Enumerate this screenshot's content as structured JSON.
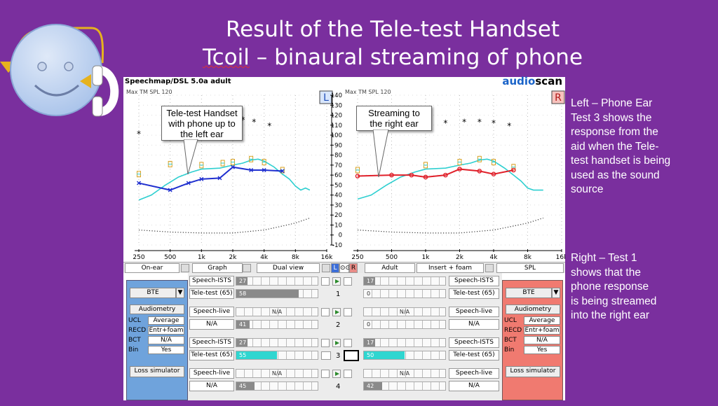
{
  "slide": {
    "title_line1": "Result of the Tele-test Handset",
    "title_line2_word": "Tcoil",
    "title_line2_rest": " – binaural streaming of phone",
    "side_left": [
      "Left – Phone Ear",
      "Test 3 shows the",
      "response from the",
      "aid when the Tele-",
      "test handset is being",
      "used as the sound",
      "source"
    ],
    "side_right": [
      "Right – Test 1",
      "shows that the",
      "phone response",
      "is being streamed",
      "into the right ear"
    ],
    "callout_left": [
      "Tele-test Handset",
      "with phone up to",
      "the left ear"
    ],
    "callout_right": [
      "Streaming to",
      "the right ear"
    ]
  },
  "screen": {
    "header": "Speechmap/DSL 5.0a adult",
    "brand_a": "audio",
    "brand_b": "scan",
    "max_label": "Max TM SPL 120",
    "left_badge": "L",
    "right_badge": "R",
    "colors": {
      "left_curve": "#1f2fcf",
      "right_curve": "#e0202a",
      "target": "#2ecfd0",
      "left_panel": "#6fa3dc",
      "right_panel": "#f07a70"
    }
  },
  "chart_data": {
    "type": "line",
    "x_ticks": [
      "250",
      "500",
      "1k",
      "2k",
      "4k",
      "8k",
      "16k"
    ],
    "y_ticks": [
      "140",
      "130",
      "120",
      "110",
      "100",
      "90",
      "80",
      "70",
      "60",
      "50",
      "40",
      "30",
      "20",
      "10",
      "0",
      "-10"
    ],
    "ylim": [
      -10,
      140
    ],
    "left_ear": {
      "ucl_stars": [
        [
          250,
          101
        ],
        [
          2500,
          115
        ],
        [
          3200,
          113
        ],
        [
          4500,
          109
        ]
      ],
      "targets": [
        [
          250,
          61
        ],
        [
          500,
          71
        ],
        [
          1000,
          70
        ],
        [
          1600,
          72
        ],
        [
          2000,
          73
        ],
        [
          3000,
          76
        ],
        [
          4000,
          73
        ],
        [
          6000,
          65
        ]
      ],
      "aided_response_test3": [
        [
          250,
          52
        ],
        [
          500,
          45
        ],
        [
          750,
          52
        ],
        [
          1000,
          56
        ],
        [
          1500,
          57
        ],
        [
          2000,
          68
        ],
        [
          3000,
          65
        ],
        [
          4000,
          65
        ],
        [
          6000,
          64
        ]
      ],
      "target_curve": [
        [
          250,
          35
        ],
        [
          330,
          40
        ],
        [
          450,
          50
        ],
        [
          600,
          58
        ],
        [
          800,
          63
        ],
        [
          1000,
          66
        ],
        [
          1500,
          67
        ],
        [
          2000,
          70
        ],
        [
          2500,
          72
        ],
        [
          3000,
          75
        ],
        [
          3500,
          76
        ],
        [
          4000,
          74
        ],
        [
          5000,
          68
        ],
        [
          6000,
          61
        ],
        [
          7000,
          56
        ],
        [
          8000,
          49
        ],
        [
          9000,
          45
        ],
        [
          10000,
          47
        ],
        [
          11000,
          45
        ]
      ],
      "threshold_curve": [
        [
          250,
          5
        ],
        [
          500,
          3
        ],
        [
          1000,
          2
        ],
        [
          2000,
          2
        ],
        [
          4000,
          5
        ],
        [
          6000,
          9
        ],
        [
          8000,
          12
        ],
        [
          11000,
          17
        ]
      ]
    },
    "right_ear": {
      "ucl_stars": [
        [
          1000,
          113
        ],
        [
          1500,
          112
        ],
        [
          2200,
          113
        ],
        [
          3000,
          113
        ],
        [
          4000,
          112
        ],
        [
          5500,
          109
        ]
      ],
      "targets": [
        [
          250,
          65
        ],
        [
          1000,
          70
        ],
        [
          2000,
          73
        ],
        [
          3000,
          76
        ],
        [
          4000,
          73
        ],
        [
          6000,
          68
        ]
      ],
      "aided_response_test1": [
        [
          250,
          59
        ],
        [
          500,
          60
        ],
        [
          750,
          60
        ],
        [
          1000,
          58
        ],
        [
          1500,
          60
        ],
        [
          2000,
          66
        ],
        [
          3000,
          64
        ],
        [
          4000,
          61
        ],
        [
          6000,
          65
        ]
      ],
      "target_curve": [
        [
          250,
          36
        ],
        [
          330,
          40
        ],
        [
          450,
          50
        ],
        [
          600,
          58
        ],
        [
          800,
          63
        ],
        [
          1000,
          66
        ],
        [
          1500,
          67
        ],
        [
          2000,
          70
        ],
        [
          2500,
          72
        ],
        [
          3000,
          75
        ],
        [
          3500,
          76
        ],
        [
          4000,
          74
        ],
        [
          5000,
          67
        ],
        [
          6000,
          60
        ],
        [
          7000,
          54
        ],
        [
          8000,
          47
        ],
        [
          9000,
          45
        ],
        [
          11000,
          45
        ]
      ],
      "threshold_curve": [
        [
          250,
          5
        ],
        [
          500,
          3
        ],
        [
          1000,
          2
        ],
        [
          2000,
          2
        ],
        [
          4000,
          5
        ],
        [
          6000,
          9
        ],
        [
          8000,
          12
        ],
        [
          11000,
          17
        ]
      ]
    }
  },
  "controls": {
    "bottom_bar": {
      "on_ear": "On-ear",
      "graph": "Graph",
      "dual_view": "Dual view",
      "l": "L",
      "link": "⊙⊙",
      "r": "R",
      "adult": "Adult",
      "coupling": "Insert + foam",
      "spl": "SPL"
    },
    "left_panel": {
      "style": "BTE",
      "audiometry": "Audiometry",
      "ucl_label": "UCL",
      "ucl_val": "Average",
      "recd_label": "RECD",
      "recd_val": "Entr+foam",
      "bct_label": "BCT",
      "bct_val": "N/A",
      "bin_label": "Bin",
      "bin_val": "Yes",
      "loss_sim": "Loss simulator"
    },
    "right_panel": {
      "style": "BTE",
      "audiometry": "Audiometry",
      "ucl_label": "UCL",
      "ucl_val": "Average",
      "recd_label": "RECD",
      "recd_val": "Entr+foam",
      "bct_label": "BCT",
      "bct_val": "N/A",
      "bin_label": "Bin",
      "bin_val": "Yes",
      "loss_sim": "Loss simulator"
    },
    "tests": [
      {
        "num": "1",
        "l_stim": "Speech-ISTS",
        "l_stim_level": "27",
        "l_test": "Tele-test (65)",
        "l_test_level": "58",
        "r_stim": "Speech-ISTS",
        "r_stim_level": "17",
        "r_test": "Tele-test (65)",
        "r_test_level": "0",
        "l_stim_fill": 0.14,
        "l_test_fill": 0.77,
        "r_stim_fill": 0.14,
        "r_test_fill": 0
      },
      {
        "num": "2",
        "l_stim": "Speech-live",
        "l_stim_level": "N/A",
        "l_test": "N/A",
        "l_test_level": "41",
        "r_stim": "Speech-live",
        "r_stim_level": "N/A",
        "r_test": "N/A",
        "r_test_level": "0",
        "l_stim_fill": 0,
        "l_test_fill": 0.16,
        "r_stim_fill": 0,
        "r_test_fill": 0
      },
      {
        "num": "3",
        "l_stim": "Speech-ISTS",
        "l_stim_level": "27",
        "l_test": "Tele-test (65)",
        "l_test_level": "55",
        "r_stim": "Speech-ISTS",
        "r_stim_level": "17",
        "r_test": "Tele-test (65)",
        "r_test_level": "50",
        "l_stim_fill": 0.14,
        "l_test_fill": 0.5,
        "r_stim_fill": 0.14,
        "r_test_fill": 0.5
      },
      {
        "num": "4",
        "l_stim": "Speech-live",
        "l_stim_level": "N/A",
        "l_test": "N/A",
        "l_test_level": "45",
        "r_stim": "Speech-live",
        "r_stim_level": "N/A",
        "r_test": "N/A",
        "r_test_level": "42",
        "l_stim_fill": 0,
        "l_test_fill": 0.22,
        "r_stim_fill": 0,
        "r_test_fill": 0.22
      }
    ]
  }
}
